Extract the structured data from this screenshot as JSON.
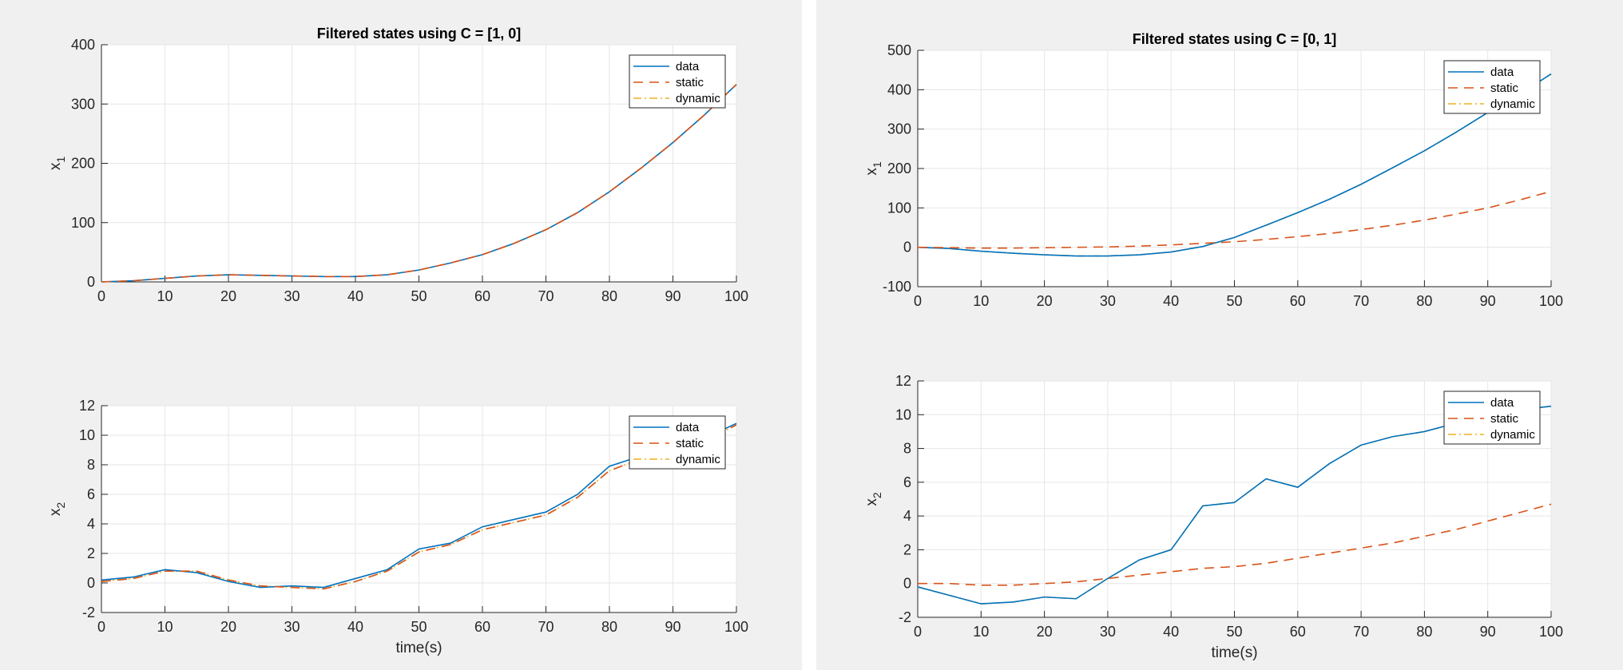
{
  "legend_labels": [
    "data",
    "static",
    "dynamic"
  ],
  "colors": {
    "data": "#0072bd",
    "static": "#d95319",
    "dynamic": "#edb120",
    "grid": "#e6e6e6",
    "axes": "#262626",
    "background": "#f0f0f0"
  },
  "chart_data": [
    {
      "type": "line",
      "title": "Filtered states using C = [1, 0]",
      "xlabel": "",
      "ylabel": "x_1",
      "xlim": [
        0,
        100
      ],
      "ylim": [
        0,
        400
      ],
      "xticks": [
        0,
        10,
        20,
        30,
        40,
        50,
        60,
        70,
        80,
        90,
        100
      ],
      "yticks": [
        0,
        100,
        200,
        300,
        400
      ],
      "grid": true,
      "legend_position": "top-right",
      "x": [
        0,
        5,
        10,
        15,
        20,
        25,
        30,
        35,
        40,
        45,
        50,
        55,
        60,
        65,
        70,
        75,
        80,
        85,
        90,
        95,
        100
      ],
      "series": [
        {
          "name": "data",
          "values": [
            0,
            2,
            6,
            10,
            12,
            11,
            10,
            9,
            9,
            12,
            20,
            32,
            46,
            65,
            88,
            117,
            152,
            192,
            235,
            282,
            333
          ]
        },
        {
          "name": "static",
          "values": [
            0,
            2,
            6,
            10,
            12,
            11,
            10,
            9,
            9,
            12,
            20,
            32,
            46,
            65,
            88,
            117,
            152,
            192,
            235,
            282,
            333
          ]
        },
        {
          "name": "dynamic",
          "values": [
            0,
            2,
            6,
            10,
            12,
            11,
            10,
            9,
            9,
            12,
            20,
            32,
            46,
            65,
            88,
            117,
            152,
            192,
            235,
            282,
            333
          ]
        }
      ]
    },
    {
      "type": "line",
      "title": "",
      "xlabel": "time(s)",
      "ylabel": "x_2",
      "xlim": [
        0,
        100
      ],
      "ylim": [
        -2,
        12
      ],
      "xticks": [
        0,
        10,
        20,
        30,
        40,
        50,
        60,
        70,
        80,
        90,
        100
      ],
      "yticks": [
        -2,
        0,
        2,
        4,
        6,
        8,
        10,
        12
      ],
      "grid": true,
      "legend_position": "top-right",
      "x": [
        0,
        5,
        10,
        15,
        20,
        25,
        30,
        35,
        40,
        45,
        50,
        55,
        60,
        65,
        70,
        75,
        80,
        85,
        90,
        95,
        100
      ],
      "series": [
        {
          "name": "data",
          "values": [
            0.2,
            0.4,
            0.9,
            0.7,
            0.1,
            -0.3,
            -0.2,
            -0.3,
            0.3,
            0.9,
            2.3,
            2.7,
            3.8,
            4.3,
            4.8,
            6.0,
            7.9,
            8.6,
            8.5,
            9.8,
            10.8
          ]
        },
        {
          "name": "static",
          "values": [
            0.1,
            0.3,
            0.8,
            0.8,
            0.2,
            -0.2,
            -0.3,
            -0.4,
            0.1,
            0.8,
            2.1,
            2.6,
            3.6,
            4.1,
            4.6,
            5.8,
            7.6,
            8.4,
            8.3,
            9.6,
            10.7
          ]
        },
        {
          "name": "dynamic",
          "values": [
            0.1,
            0.3,
            0.8,
            0.8,
            0.2,
            -0.2,
            -0.3,
            -0.4,
            0.1,
            0.8,
            2.1,
            2.6,
            3.6,
            4.1,
            4.6,
            5.8,
            7.6,
            8.4,
            8.3,
            9.6,
            10.7
          ]
        }
      ]
    },
    {
      "type": "line",
      "title": "Filtered states using C = [0, 1]",
      "xlabel": "",
      "ylabel": "x_1",
      "xlim": [
        0,
        100
      ],
      "ylim": [
        -100,
        500
      ],
      "xticks": [
        0,
        10,
        20,
        30,
        40,
        50,
        60,
        70,
        80,
        90,
        100
      ],
      "yticks": [
        -100,
        0,
        100,
        200,
        300,
        400,
        500
      ],
      "grid": true,
      "legend_position": "top-right",
      "x": [
        0,
        5,
        10,
        15,
        20,
        25,
        30,
        35,
        40,
        45,
        50,
        55,
        60,
        65,
        70,
        75,
        80,
        85,
        90,
        95,
        100
      ],
      "series": [
        {
          "name": "data",
          "values": [
            0,
            -3,
            -10,
            -15,
            -19,
            -22,
            -22,
            -19,
            -12,
            2,
            25,
            56,
            88,
            122,
            160,
            202,
            245,
            292,
            342,
            388,
            440
          ]
        },
        {
          "name": "static",
          "values": [
            0,
            -1,
            -2,
            -2,
            -1,
            0,
            1,
            3,
            6,
            10,
            14,
            20,
            27,
            35,
            45,
            56,
            69,
            84,
            100,
            120,
            142
          ]
        },
        {
          "name": "dynamic",
          "values": [
            0,
            -3,
            -10,
            -15,
            -19,
            -22,
            -22,
            -19,
            -12,
            2,
            25,
            56,
            88,
            122,
            160,
            202,
            245,
            292,
            342,
            388,
            440
          ]
        }
      ]
    },
    {
      "type": "line",
      "title": "",
      "xlabel": "time(s)",
      "ylabel": "x_2",
      "xlim": [
        0,
        100
      ],
      "ylim": [
        -2,
        12
      ],
      "xticks": [
        0,
        10,
        20,
        30,
        40,
        50,
        60,
        70,
        80,
        90,
        100
      ],
      "yticks": [
        -2,
        0,
        2,
        4,
        6,
        8,
        10,
        12
      ],
      "grid": true,
      "legend_position": "top-right",
      "x": [
        0,
        5,
        10,
        15,
        20,
        25,
        30,
        35,
        40,
        45,
        50,
        55,
        60,
        65,
        70,
        75,
        80,
        85,
        90,
        95,
        100
      ],
      "series": [
        {
          "name": "data",
          "values": [
            -0.2,
            -0.7,
            -1.2,
            -1.1,
            -0.8,
            -0.9,
            0.3,
            1.4,
            2.0,
            4.6,
            4.8,
            6.2,
            5.7,
            7.1,
            8.2,
            8.7,
            9.0,
            9.5,
            9.9,
            10.3,
            10.5
          ]
        },
        {
          "name": "static",
          "values": [
            0,
            0,
            -0.1,
            -0.1,
            0,
            0.1,
            0.3,
            0.5,
            0.7,
            0.9,
            1.0,
            1.2,
            1.5,
            1.8,
            2.1,
            2.4,
            2.8,
            3.2,
            3.7,
            4.2,
            4.7
          ]
        },
        {
          "name": "dynamic",
          "values": [
            -0.2,
            -0.7,
            -1.2,
            -1.1,
            -0.8,
            -0.9,
            0.3,
            1.4,
            2.0,
            4.6,
            4.8,
            6.2,
            5.7,
            7.1,
            8.2,
            8.7,
            9.0,
            9.5,
            9.9,
            10.3,
            10.5
          ]
        }
      ]
    }
  ]
}
